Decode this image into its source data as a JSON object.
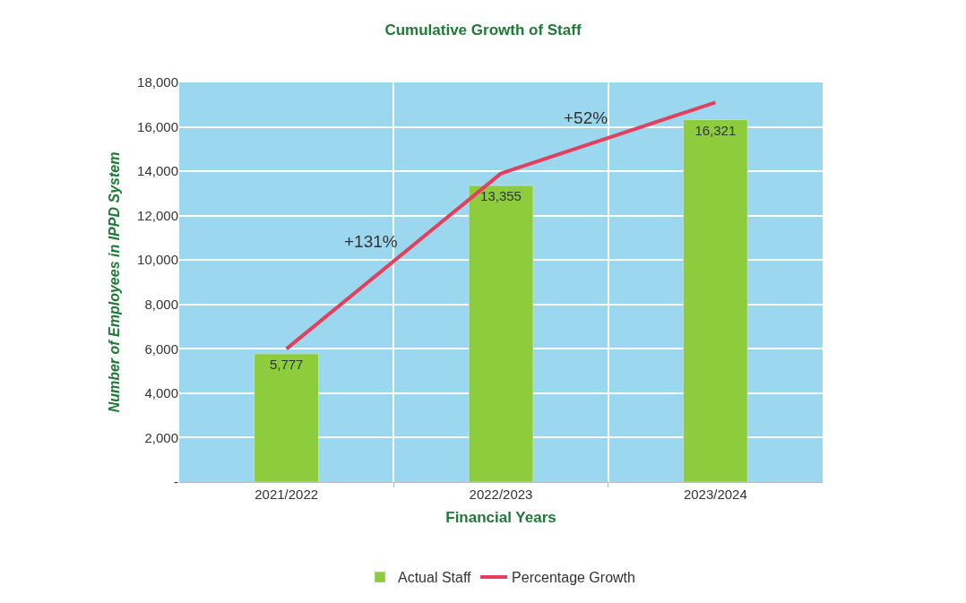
{
  "chart_data": {
    "type": "bar",
    "title": "Cumulative Growth of Staff",
    "xlabel": "Financial Years",
    "ylabel": "Number of Employees in IPPD System",
    "categories": [
      "2021/2022",
      "2022/2023",
      "2023/2024"
    ],
    "series": [
      {
        "name": "Actual Staff",
        "color": "#8dcc3c",
        "values": [
          5777,
          13355,
          16321
        ],
        "value_labels": [
          "5,777",
          "13,355",
          "16,321"
        ]
      },
      {
        "name": "Percentage Growth",
        "type": "line",
        "color": "#e2405c",
        "values": [
          6000,
          13900,
          17100
        ]
      }
    ],
    "annotations": [
      "+131%",
      "+52%"
    ],
    "ylim": [
      0,
      18000
    ],
    "yticks": [
      {
        "value": 0,
        "label": "-"
      },
      {
        "value": 2000,
        "label": "2,000"
      },
      {
        "value": 4000,
        "label": "4,000"
      },
      {
        "value": 6000,
        "label": "6,000"
      },
      {
        "value": 8000,
        "label": "8,000"
      },
      {
        "value": 10000,
        "label": "10,000"
      },
      {
        "value": 12000,
        "label": "12,000"
      },
      {
        "value": 14000,
        "label": "14,000"
      },
      {
        "value": 16000,
        "label": "16,000"
      },
      {
        "value": 18000,
        "label": "18,000"
      }
    ],
    "grid": true,
    "legend": "bottom",
    "marker": "none"
  }
}
